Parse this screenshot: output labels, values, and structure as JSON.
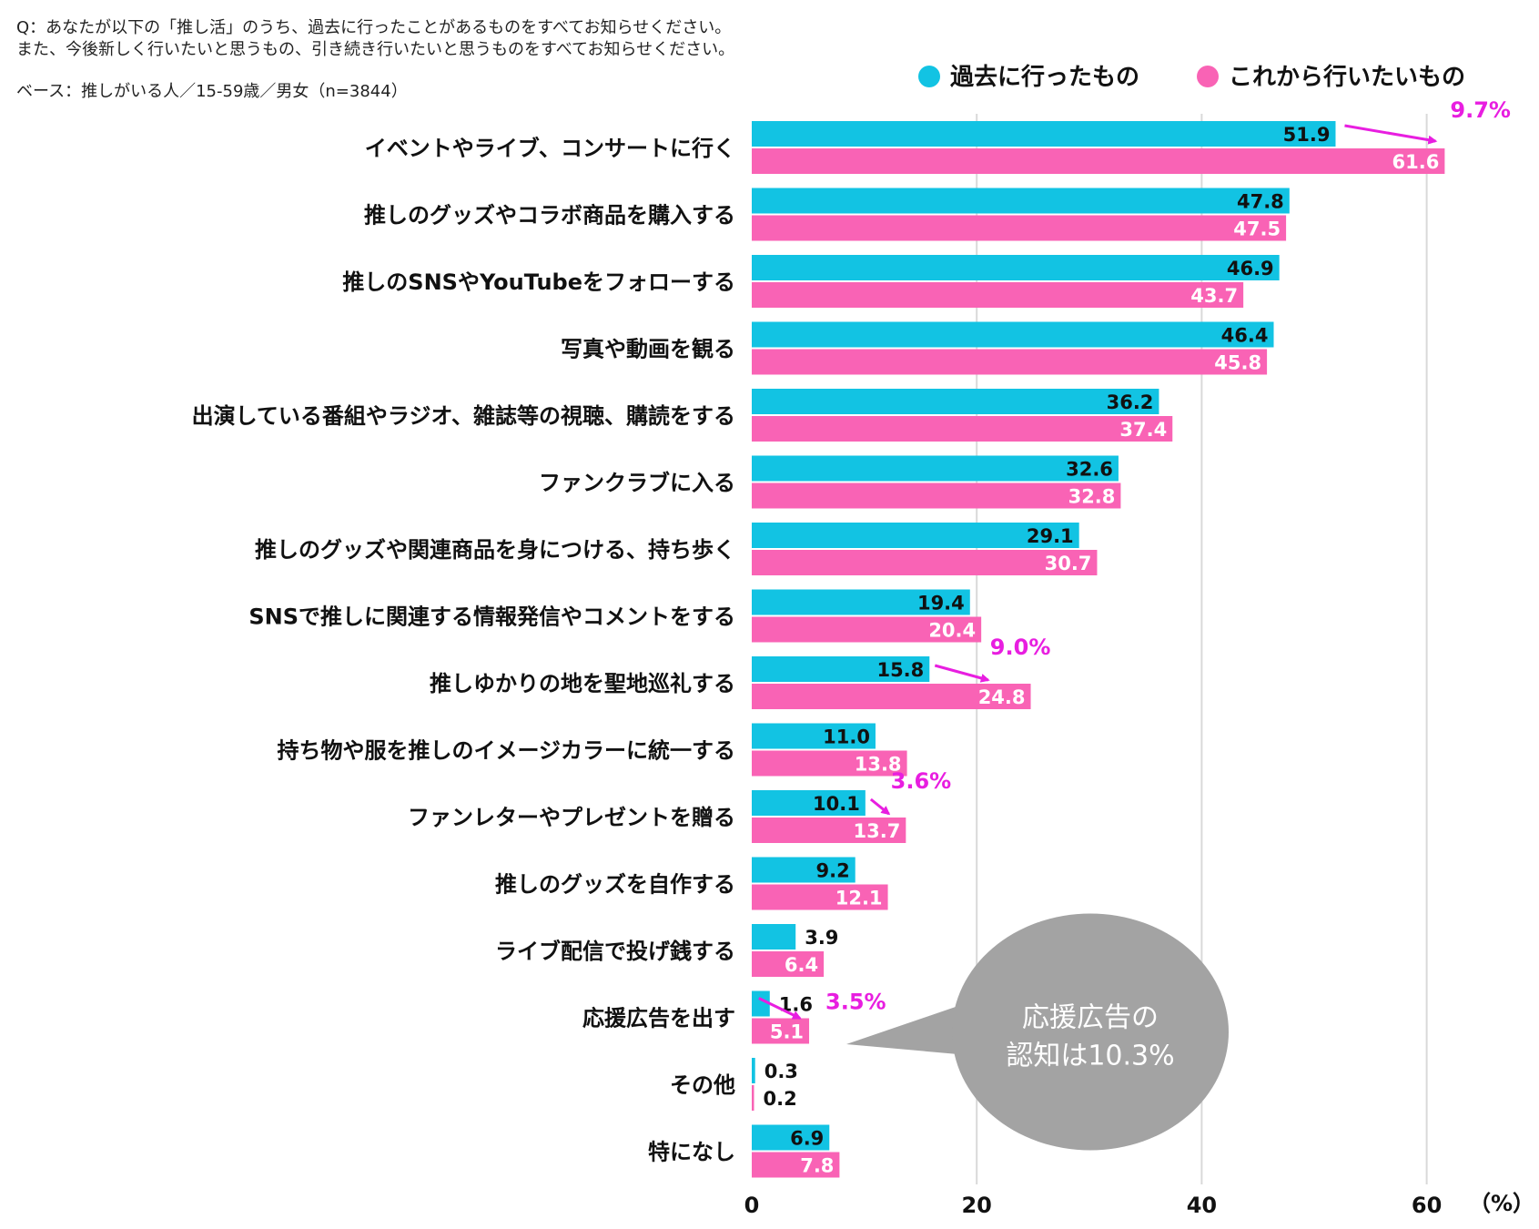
{
  "notes": {
    "question_line1": "Q：あなたが以下の「推し活」のうち、過去に行ったことがあるものをすべてお知らせください。",
    "question_line2": "また、今後新しく行いたいと思うもの、引き続き行いたいと思うものをすべてお知らせください。",
    "base": "ベース：推しがいる人／15-59歳／男女（n=3844）"
  },
  "colors": {
    "past": "#12c3e3",
    "future": "#f963b5",
    "accent": "#e81ee0",
    "bubble": "#a3a3a3",
    "grid": "#d9d9d9"
  },
  "chart_data": {
    "type": "bar",
    "orientation": "horizontal",
    "unit_label": "（%）",
    "xlim": [
      0,
      60
    ],
    "xticks": [
      0,
      20,
      40,
      60
    ],
    "grid": true,
    "legend_position": "top-right",
    "categories": [
      "イベントやライブ、コンサートに行く",
      "推しのグッズやコラボ商品を購入する",
      "推しのSNSやYouTubeをフォローする",
      "写真や動画を観る",
      "出演している番組やラジオ、雑誌等の視聴、購読をする",
      "ファンクラブに入る",
      "推しのグッズや関連商品を身につける、持ち歩く",
      "SNSで推しに関連する情報発信やコメントをする",
      "推しゆかりの地を聖地巡礼する",
      "持ち物や服を推しのイメージカラーに統一する",
      "ファンレターやプレゼントを贈る",
      "推しのグッズを自作する",
      "ライブ配信で投げ銭する",
      "応援広告を出す",
      "その他",
      "特になし"
    ],
    "series": [
      {
        "name": "過去に行ったもの",
        "values": [
          51.9,
          47.8,
          46.9,
          46.4,
          36.2,
          32.6,
          29.1,
          19.4,
          15.8,
          11.0,
          10.1,
          9.2,
          3.9,
          1.6,
          0.3,
          6.9
        ],
        "labels": [
          "51.9",
          "47.8",
          "46.9",
          "46.4",
          "36.2",
          "32.6",
          "29.1",
          "19.4",
          "15.8",
          "11.0",
          "10.1",
          "9.2",
          "3.9",
          "1.6",
          "0.3",
          "6.9"
        ]
      },
      {
        "name": "これから行いたいもの",
        "values": [
          61.6,
          47.5,
          43.7,
          45.8,
          37.4,
          32.8,
          30.7,
          20.4,
          24.8,
          13.8,
          13.7,
          12.1,
          6.4,
          5.1,
          0.2,
          7.8
        ],
        "labels": [
          "61.6",
          "47.5",
          "43.7",
          "45.8",
          "37.4",
          "32.8",
          "30.7",
          "20.4",
          "24.8",
          "13.8",
          "13.7",
          "12.1",
          "6.4",
          "5.1",
          "0.2",
          "7.8"
        ]
      }
    ],
    "annotations": [
      {
        "category_index": 0,
        "text": "9.7%"
      },
      {
        "category_index": 8,
        "text": "9.0%"
      },
      {
        "category_index": 10,
        "text": "3.6%"
      },
      {
        "category_index": 13,
        "text": "3.5%"
      }
    ],
    "callout": {
      "category_index": 13,
      "line1": "応援広告の",
      "line2": "認知は10.3%"
    }
  }
}
